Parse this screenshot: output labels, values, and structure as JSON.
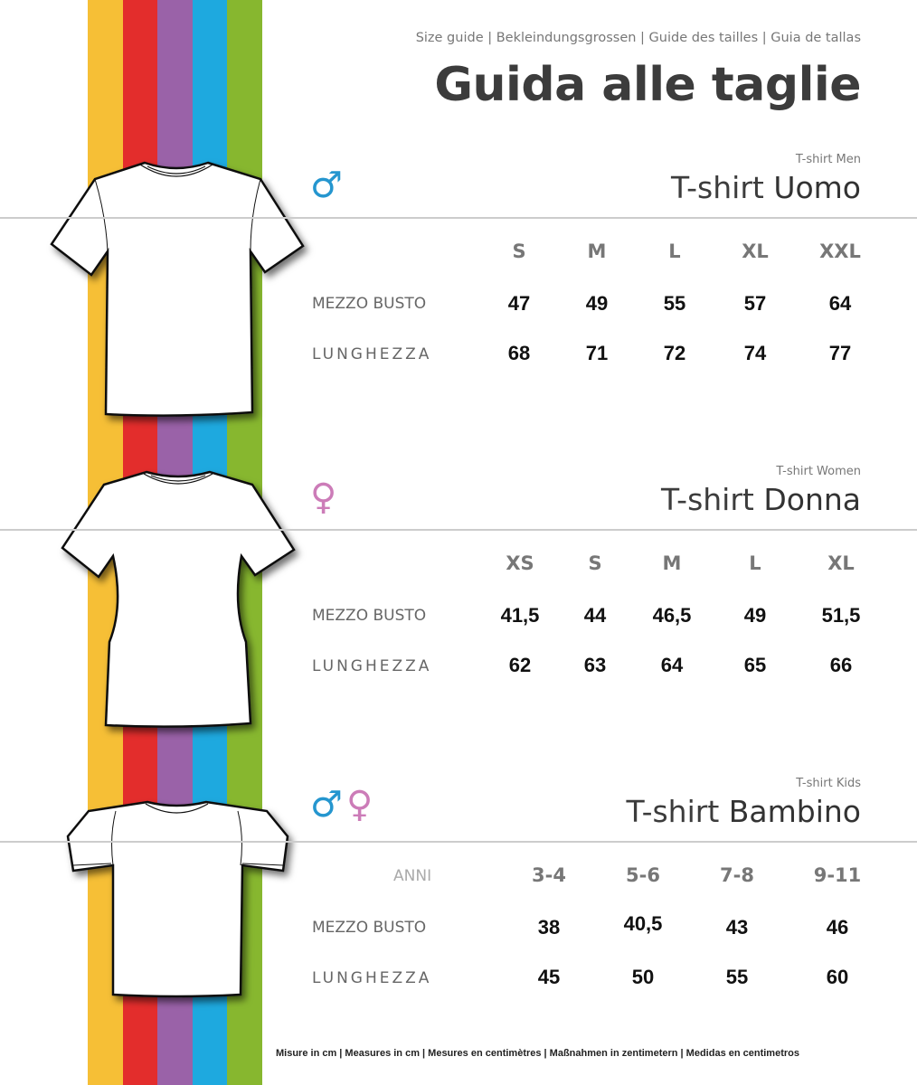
{
  "colors": {
    "stripes": [
      "#f6bf36",
      "#e32d2c",
      "#9a62a8",
      "#1ea9df",
      "#87b72f"
    ],
    "male": "#2596cf",
    "female": "#cc7cb8"
  },
  "header": {
    "languages": "Size guide  |  Bekleindungsgrossen  |  Guide des tailles  |  Guia de tallas",
    "title": "Guida alle taglie"
  },
  "sections": [
    {
      "id": "men",
      "icon": "male-symbol-icon",
      "symbol": "♂",
      "subtitle": "T-shirt Men",
      "title_a": "T-shirt ",
      "title_b": "Uomo",
      "headers": [
        "S",
        "M",
        "L",
        "XL",
        "XXL"
      ],
      "rows": [
        {
          "label": "MEZZO BUSTO",
          "values": [
            "47",
            "49",
            "55",
            "57",
            "64"
          ]
        },
        {
          "label": "LUNGHEZZA",
          "values": [
            "68",
            "71",
            "72",
            "74",
            "77"
          ]
        }
      ]
    },
    {
      "id": "women",
      "icon": "female-symbol-icon",
      "symbol": "♀",
      "subtitle": "T-shirt Women",
      "title_a": "T-shirt ",
      "title_b": "Donna",
      "headers": [
        "XS",
        "S",
        "M",
        "L",
        "XL"
      ],
      "rows": [
        {
          "label": "MEZZO BUSTO",
          "values": [
            "41,5",
            "44",
            "46,5",
            "49",
            "51,5"
          ]
        },
        {
          "label": "LUNGHEZZA",
          "values": [
            "62",
            "63",
            "64",
            "65",
            "66"
          ]
        }
      ]
    },
    {
      "id": "kids",
      "icon": "male-female-symbol-icon",
      "symbol": "♂♀",
      "subtitle": "T-shirt Kids",
      "title_a": "T-shirt ",
      "title_b": "Bambino",
      "header_label": "ANNI",
      "headers": [
        "3-4",
        "5-6",
        "7-8",
        "9-11"
      ],
      "rows": [
        {
          "label": "MEZZO BUSTO",
          "values": [
            "38",
            "40,5",
            "43",
            "46"
          ]
        },
        {
          "label": "LUNGHEZZA",
          "values": [
            "45",
            "50",
            "55",
            "60"
          ]
        }
      ]
    }
  ],
  "footer": "Misure in cm  |   Measures in cm  |  Mesures en centimètres  |  Maßnahmen in zentimetern  |  Medidas en centimetros"
}
